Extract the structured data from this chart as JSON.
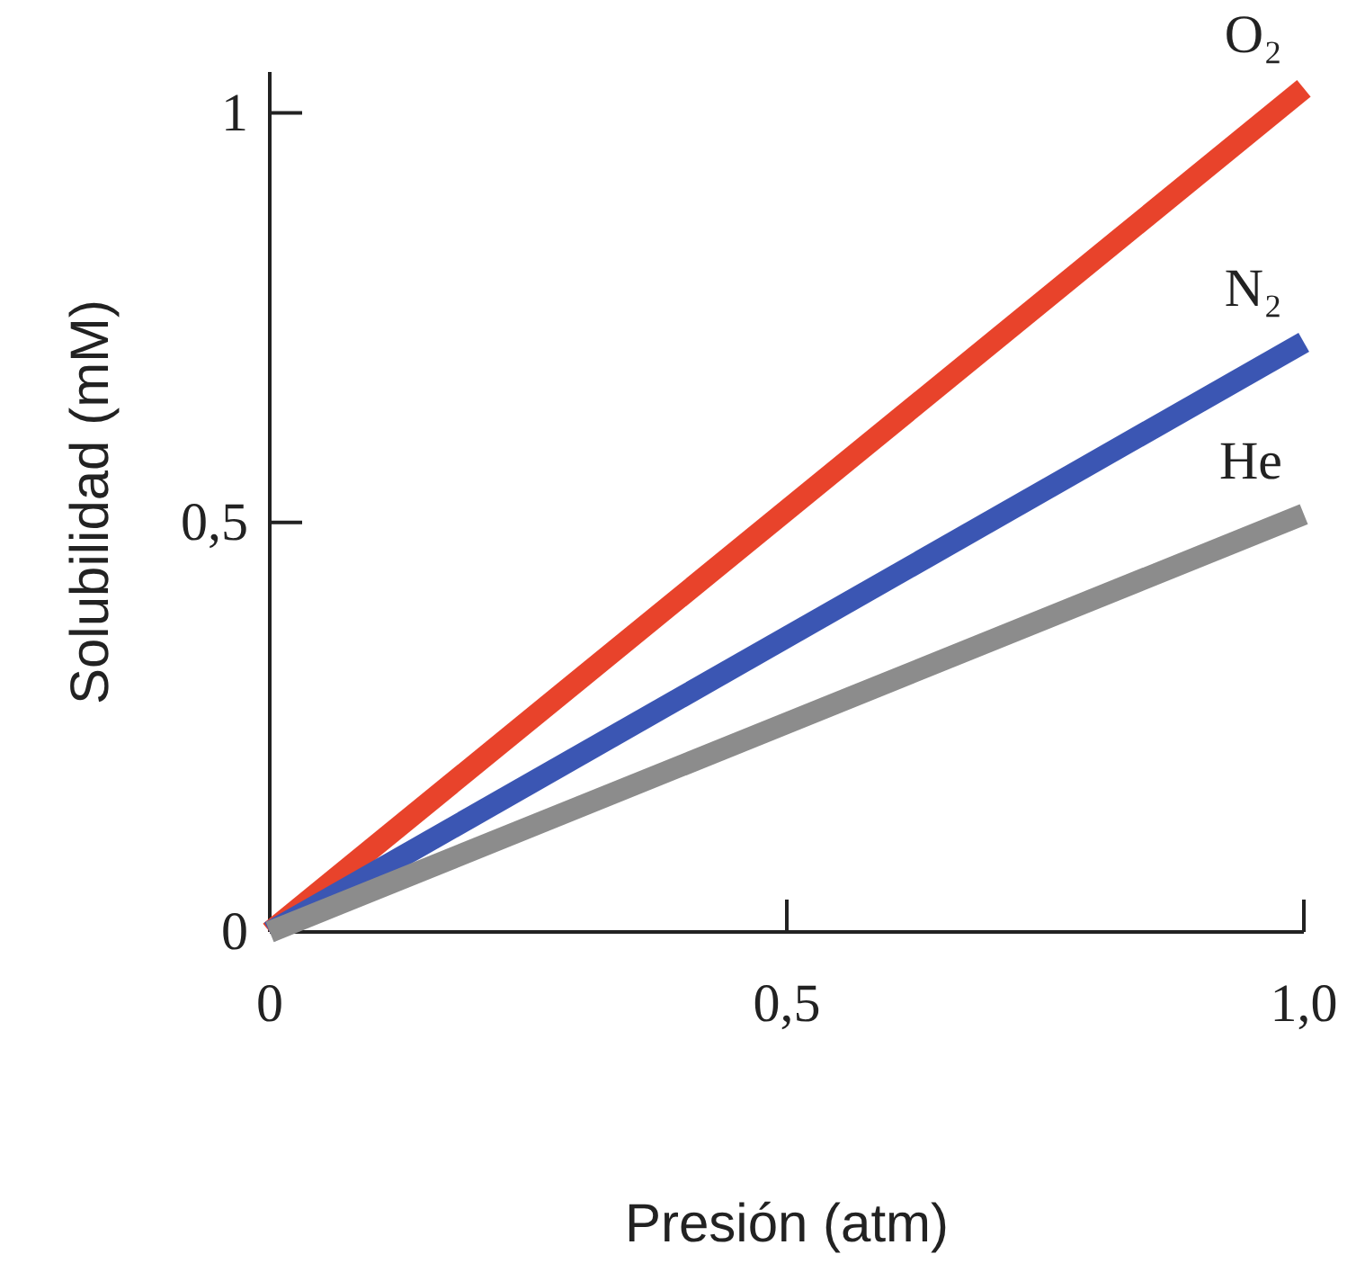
{
  "chart_data": {
    "type": "line",
    "xlabel": "Presión (atm)",
    "ylabel": "Solubilidad (mM)",
    "x": [
      0,
      1
    ],
    "xlim": [
      0,
      1
    ],
    "ylim": [
      0,
      1.05
    ],
    "xticks": [
      0,
      {
        "value": 0.5,
        "label": "0,5"
      },
      {
        "value": 1,
        "label": "1,0"
      }
    ],
    "yticks": [
      0,
      {
        "value": 0.5,
        "label": "0,5"
      },
      1
    ],
    "grid": false,
    "legend": false,
    "marker": "none",
    "line_style": "solid",
    "series": [
      {
        "name": "O₂",
        "color": "#e8432b",
        "values": [
          0,
          1.03
        ]
      },
      {
        "name": "N₂",
        "color": "#3b56b3",
        "values": [
          0,
          0.72
        ]
      },
      {
        "name": "He",
        "color": "#8c8c8c",
        "values": [
          0,
          0.51
        ]
      }
    ]
  }
}
